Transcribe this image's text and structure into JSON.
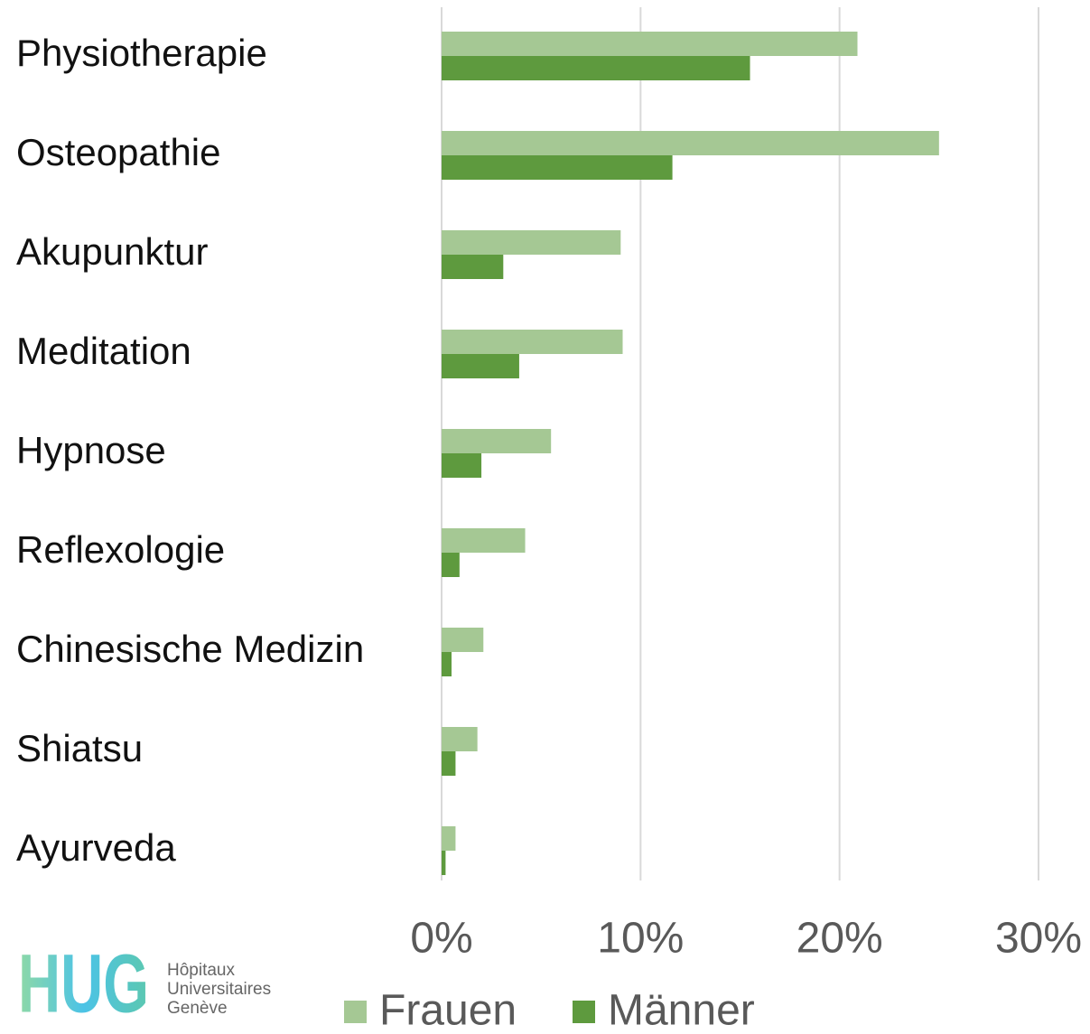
{
  "chart_data": {
    "type": "hbar",
    "categories": [
      "Physiotherapie",
      "Osteopathie",
      "Akupunktur",
      "Meditation",
      "Hypnose",
      "Reflexologie",
      "Chinesische Medizin",
      "Shiatsu",
      "Ayurveda"
    ],
    "series": [
      {
        "name": "Frauen",
        "color": "#a5c894",
        "values": [
          20.9,
          25.0,
          9.0,
          9.1,
          5.5,
          4.2,
          2.1,
          1.8,
          0.7
        ]
      },
      {
        "name": "Männer",
        "color": "#5e9a3e",
        "values": [
          15.5,
          11.6,
          3.1,
          3.9,
          2.0,
          0.9,
          0.5,
          0.7,
          0.2
        ]
      }
    ],
    "xlim": [
      0,
      30
    ],
    "xticks": [
      {
        "value": 0,
        "label": "0%"
      },
      {
        "value": 10,
        "label": "10%"
      },
      {
        "value": 20,
        "label": "20%"
      },
      {
        "value": 30,
        "label": "30%"
      }
    ],
    "grid": true,
    "legend": "bottom"
  },
  "logo": {
    "mark": "HUG",
    "lines": [
      "Hôpitaux",
      "Universitaires",
      "Genève"
    ]
  }
}
